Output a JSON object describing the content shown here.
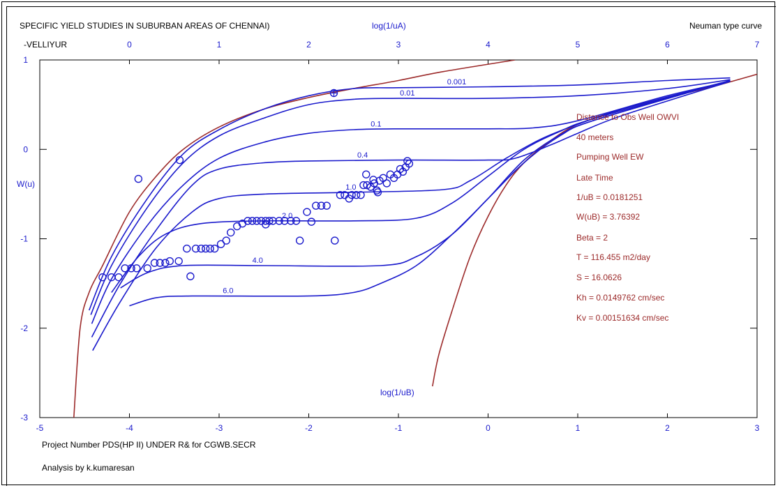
{
  "header": {
    "title": "SPECIFIC YIELD STUDIES IN SUBURBAN AREAS OF CHENNAI)",
    "subtitle": "-VELLIYUR",
    "top_axis_label": "log(1/uA)",
    "curve_type": "Neuman type curve"
  },
  "footer": {
    "line1": "Project Number PDS(HP II) UNDER R& for CGWB.SECR",
    "line2": "Analysis by k.kumaresan"
  },
  "info_panel": [
    "Distance to Obs Well OWVI",
    "40 meters",
    "Pumping Well EW",
    "Late Time",
    "1/uB = 0.0181251",
    "W(uB) = 3.76392",
    "Beta = 2",
    "T = 116.455 m2/day",
    "S = 16.0626",
    "Kh = 0.0149762 cm/sec",
    "Kv = 0.00151634 cm/sec"
  ],
  "colors": {
    "blue": "#1a1acc",
    "brown": "#9c2a2a",
    "axis": "#000000"
  },
  "chart_data": {
    "type": "line",
    "title": "SPECIFIC YIELD STUDIES IN SUBURBAN AREAS OF CHENNAI)",
    "xlabel": "log(1/uB)",
    "ylabel": "W(u)",
    "x2label": "log(1/uA)",
    "xlim": [
      -5,
      3
    ],
    "ylim": [
      -3,
      1
    ],
    "x2lim": [
      -1,
      7
    ],
    "xticks": [
      "-5",
      "-4",
      "-3",
      "-2",
      "-1",
      "0",
      "1",
      "2",
      "3"
    ],
    "x2ticks": [
      "0",
      "1",
      "2",
      "3",
      "4",
      "5",
      "6",
      "7"
    ],
    "yticks": [
      "1",
      "0",
      "-1",
      "-2",
      "-3"
    ],
    "grid": false,
    "type_a_curve": [
      [
        -4.62,
        -3.0
      ],
      [
        -4.55,
        -2.0
      ],
      [
        -4.45,
        -1.6
      ],
      [
        -4.3,
        -1.3
      ],
      [
        -4.0,
        -0.7
      ],
      [
        -3.7,
        -0.3
      ],
      [
        -3.4,
        0.0
      ],
      [
        -3.0,
        0.25
      ],
      [
        -2.5,
        0.45
      ],
      [
        -2.0,
        0.58
      ],
      [
        -1.5,
        0.68
      ],
      [
        -1.0,
        0.77
      ],
      [
        -0.5,
        0.87
      ],
      [
        0.3,
        1.0
      ]
    ],
    "type_b_curve": [
      [
        -0.62,
        -2.65
      ],
      [
        -0.55,
        -2.3
      ],
      [
        -0.4,
        -1.8
      ],
      [
        -0.2,
        -1.2
      ],
      [
        0.0,
        -0.75
      ],
      [
        0.2,
        -0.4
      ],
      [
        0.4,
        -0.15
      ],
      [
        0.7,
        0.1
      ],
      [
        1.0,
        0.28
      ],
      [
        1.5,
        0.45
      ],
      [
        2.0,
        0.58
      ],
      [
        2.5,
        0.7
      ],
      [
        3.0,
        0.84
      ]
    ],
    "series": [
      {
        "name": "0.001",
        "label_x": -0.35,
        "points": [
          [
            -4.45,
            -1.8
          ],
          [
            -4.2,
            -1.2
          ],
          [
            -3.8,
            -0.55
          ],
          [
            -3.4,
            -0.05
          ],
          [
            -3.0,
            0.22
          ],
          [
            -2.5,
            0.45
          ],
          [
            -2.0,
            0.6
          ],
          [
            -1.5,
            0.68
          ],
          [
            -1.0,
            0.69
          ],
          [
            0.0,
            0.7
          ],
          [
            1.0,
            0.72
          ],
          [
            2.0,
            0.77
          ],
          [
            2.7,
            0.8
          ]
        ]
      },
      {
        "name": "0.01",
        "label_x": -0.9,
        "points": [
          [
            -4.43,
            -1.85
          ],
          [
            -4.2,
            -1.3
          ],
          [
            -3.8,
            -0.65
          ],
          [
            -3.4,
            -0.15
          ],
          [
            -3.0,
            0.15
          ],
          [
            -2.5,
            0.35
          ],
          [
            -2.0,
            0.5
          ],
          [
            -1.5,
            0.56
          ],
          [
            -1.0,
            0.57
          ],
          [
            0.0,
            0.57
          ],
          [
            1.0,
            0.6
          ],
          [
            2.0,
            0.68
          ],
          [
            2.7,
            0.78
          ]
        ]
      },
      {
        "name": "0.1",
        "label_x": -1.25,
        "points": [
          [
            -4.42,
            -1.95
          ],
          [
            -4.2,
            -1.45
          ],
          [
            -3.8,
            -0.85
          ],
          [
            -3.4,
            -0.4
          ],
          [
            -3.0,
            -0.1
          ],
          [
            -2.5,
            0.08
          ],
          [
            -2.0,
            0.18
          ],
          [
            -1.5,
            0.22
          ],
          [
            -1.0,
            0.23
          ],
          [
            0.0,
            0.23
          ],
          [
            0.5,
            0.24
          ],
          [
            1.0,
            0.32
          ],
          [
            2.0,
            0.6
          ],
          [
            2.7,
            0.76
          ]
        ]
      },
      {
        "name": "0.4",
        "label_x": -1.4,
        "points": [
          [
            -4.42,
            -2.1
          ],
          [
            -4.1,
            -1.5
          ],
          [
            -3.7,
            -0.9
          ],
          [
            -3.3,
            -0.4
          ],
          [
            -3.0,
            -0.22
          ],
          [
            -2.5,
            -0.15
          ],
          [
            -2.0,
            -0.13
          ],
          [
            -1.0,
            -0.12
          ],
          [
            0.0,
            -0.12
          ],
          [
            0.3,
            -0.1
          ],
          [
            0.7,
            0.05
          ],
          [
            1.0,
            0.18
          ],
          [
            1.5,
            0.38
          ],
          [
            2.7,
            0.76
          ]
        ]
      },
      {
        "name": "1.0",
        "label_x": -1.53,
        "points": [
          [
            -4.41,
            -2.25
          ],
          [
            -4.1,
            -1.7
          ],
          [
            -3.7,
            -1.1
          ],
          [
            -3.3,
            -0.7
          ],
          [
            -3.0,
            -0.55
          ],
          [
            -2.5,
            -0.5
          ],
          [
            -1.5,
            -0.48
          ],
          [
            -0.5,
            -0.45
          ],
          [
            -0.2,
            -0.35
          ],
          [
            0.2,
            -0.1
          ],
          [
            0.6,
            0.12
          ],
          [
            1.0,
            0.28
          ],
          [
            1.5,
            0.45
          ],
          [
            2.7,
            0.77
          ]
        ]
      },
      {
        "name": "2.0",
        "label_x": -2.24,
        "points": [
          [
            -4.2,
            -1.6
          ],
          [
            -3.9,
            -1.2
          ],
          [
            -3.6,
            -0.95
          ],
          [
            -3.2,
            -0.83
          ],
          [
            -2.5,
            -0.8
          ],
          [
            -1.5,
            -0.8
          ],
          [
            -0.8,
            -0.77
          ],
          [
            -0.4,
            -0.6
          ],
          [
            0.0,
            -0.3
          ],
          [
            0.4,
            0.0
          ],
          [
            0.8,
            0.2
          ],
          [
            1.2,
            0.35
          ],
          [
            2.7,
            0.77
          ]
        ]
      },
      {
        "name": "4.0",
        "label_x": -2.57,
        "points": [
          [
            -4.1,
            -1.55
          ],
          [
            -3.8,
            -1.38
          ],
          [
            -3.4,
            -1.3
          ],
          [
            -2.5,
            -1.3
          ],
          [
            -1.2,
            -1.3
          ],
          [
            -0.8,
            -1.2
          ],
          [
            -0.4,
            -0.95
          ],
          [
            0.0,
            -0.55
          ],
          [
            0.4,
            -0.15
          ],
          [
            0.8,
            0.15
          ],
          [
            1.2,
            0.33
          ],
          [
            2.7,
            0.77
          ]
        ]
      },
      {
        "name": "6.0",
        "label_x": -2.9,
        "points": [
          [
            -4.0,
            -1.75
          ],
          [
            -3.7,
            -1.66
          ],
          [
            -3.3,
            -1.64
          ],
          [
            -2.0,
            -1.64
          ],
          [
            -1.5,
            -1.6
          ],
          [
            -1.2,
            -1.5
          ],
          [
            -0.8,
            -1.3
          ],
          [
            -0.4,
            -0.95
          ],
          [
            0.0,
            -0.55
          ],
          [
            0.4,
            -0.12
          ],
          [
            0.8,
            0.16
          ],
          [
            1.2,
            0.33
          ],
          [
            2.7,
            0.77
          ]
        ]
      }
    ],
    "observations": [
      [
        -4.3,
        -1.43
      ],
      [
        -4.2,
        -1.43
      ],
      [
        -4.12,
        -1.43
      ],
      [
        -4.05,
        -1.33
      ],
      [
        -3.98,
        -1.33
      ],
      [
        -3.92,
        -1.33
      ],
      [
        -3.8,
        -1.33
      ],
      [
        -3.72,
        -1.27
      ],
      [
        -3.66,
        -1.27
      ],
      [
        -3.6,
        -1.27
      ],
      [
        -3.55,
        -1.25
      ],
      [
        -3.45,
        -1.25
      ],
      [
        -3.9,
        -0.33
      ],
      [
        -3.44,
        -0.12
      ],
      [
        -3.36,
        -1.11
      ],
      [
        -3.26,
        -1.11
      ],
      [
        -3.2,
        -1.11
      ],
      [
        -3.15,
        -1.11
      ],
      [
        -3.1,
        -1.11
      ],
      [
        -3.05,
        -1.11
      ],
      [
        -2.98,
        -1.06
      ],
      [
        -2.92,
        -1.02
      ],
      [
        -2.87,
        -0.93
      ],
      [
        -2.8,
        -0.86
      ],
      [
        -2.74,
        -0.83
      ],
      [
        -3.32,
        -1.42
      ],
      [
        -2.68,
        -0.8
      ],
      [
        -2.63,
        -0.8
      ],
      [
        -2.58,
        -0.8
      ],
      [
        -2.53,
        -0.8
      ],
      [
        -2.48,
        -0.8
      ],
      [
        -2.44,
        -0.8
      ],
      [
        -2.4,
        -0.8
      ],
      [
        -2.33,
        -0.8
      ],
      [
        -2.27,
        -0.8
      ],
      [
        -2.2,
        -0.8
      ],
      [
        -2.14,
        -0.8
      ],
      [
        -2.48,
        -0.84
      ],
      [
        -2.1,
        -1.02
      ],
      [
        -2.02,
        -0.7
      ],
      [
        -1.97,
        -0.81
      ],
      [
        -1.92,
        -0.63
      ],
      [
        -1.86,
        -0.63
      ],
      [
        -1.8,
        -0.63
      ],
      [
        -1.71,
        -1.02
      ],
      [
        -1.65,
        -0.51
      ],
      [
        -1.6,
        -0.51
      ],
      [
        -1.55,
        -0.55
      ],
      [
        -1.52,
        -0.51
      ],
      [
        -1.47,
        -0.51
      ],
      [
        -1.42,
        -0.51
      ],
      [
        -1.39,
        -0.4
      ],
      [
        -1.35,
        -0.4
      ],
      [
        -1.31,
        -0.42
      ],
      [
        -1.27,
        -0.38
      ],
      [
        -1.24,
        -0.46
      ],
      [
        -1.21,
        -0.35
      ],
      [
        -1.17,
        -0.32
      ],
      [
        -1.13,
        -0.38
      ],
      [
        -1.09,
        -0.28
      ],
      [
        -1.05,
        -0.32
      ],
      [
        -1.01,
        -0.28
      ],
      [
        -0.98,
        -0.22
      ],
      [
        -0.95,
        -0.25
      ],
      [
        -0.92,
        -0.2
      ],
      [
        -0.9,
        -0.13
      ],
      [
        -0.88,
        -0.16
      ],
      [
        -1.36,
        -0.28
      ],
      [
        -1.28,
        -0.34
      ],
      [
        -1.23,
        -0.48
      ]
    ],
    "highlight_point": [
      -1.72,
      0.63
    ]
  }
}
